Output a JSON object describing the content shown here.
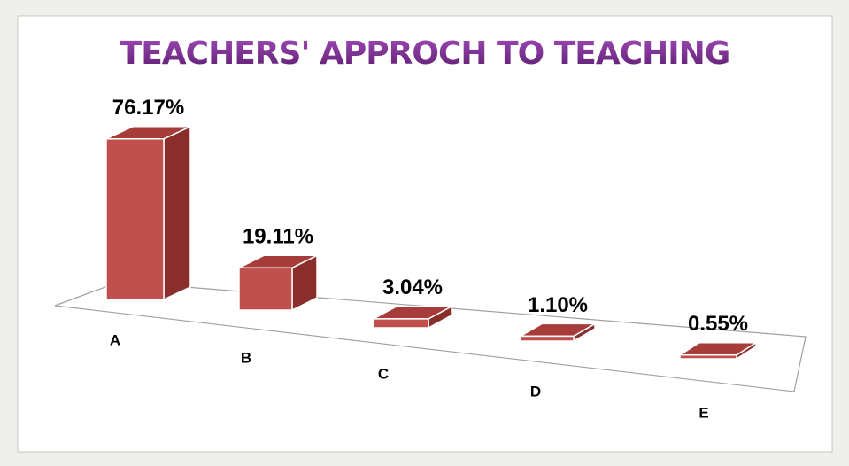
{
  "chart_data": {
    "type": "bar3d",
    "title": "TEACHERS' APPROCH TO TEACHING",
    "categories": [
      "A",
      "B",
      "C",
      "D",
      "E"
    ],
    "values": [
      76.17,
      19.11,
      3.04,
      1.1,
      0.55
    ],
    "value_labels": [
      "76.17%",
      "19.11%",
      "3.04%",
      "1.10%",
      "0.55%"
    ],
    "color": "#c0504d"
  }
}
